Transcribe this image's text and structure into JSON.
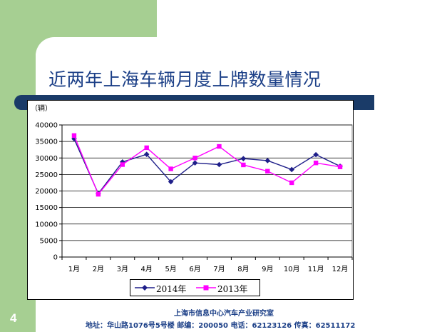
{
  "slide": {
    "title": "近两年上海车辆月度上牌数量情况",
    "page_number": "4",
    "footer_org": "上海市信息中心汽车产业研究室",
    "footer_contact": "地址：华山路1076号5号楼 邮编：200050 电话：62123126 传真：62511172",
    "colors": {
      "green": "#a6cf92",
      "navy": "#1a3b68",
      "title_blue": "#1b3f87"
    }
  },
  "chart_data": {
    "type": "line",
    "unit_label": "（辆）",
    "categories": [
      "1月",
      "2月",
      "3月",
      "4月",
      "5月",
      "6月",
      "7月",
      "8月",
      "9月",
      "10月",
      "11月",
      "12月"
    ],
    "y_ticks": [
      0,
      5000,
      10000,
      15000,
      20000,
      25000,
      30000,
      35000,
      40000
    ],
    "ylim": [
      0,
      40000
    ],
    "grid": true,
    "legend_position": "bottom",
    "series": [
      {
        "name": "2014年",
        "color": "#1f1f8a",
        "marker": "diamond",
        "values": [
          35800,
          19200,
          28800,
          31100,
          22800,
          28500,
          28000,
          29800,
          29200,
          26500,
          31000,
          27500
        ]
      },
      {
        "name": "2013年",
        "color": "#ff00ff",
        "marker": "square",
        "values": [
          36800,
          19000,
          28000,
          33100,
          26700,
          30000,
          33500,
          27900,
          26000,
          22500,
          28500,
          27300
        ]
      }
    ]
  }
}
